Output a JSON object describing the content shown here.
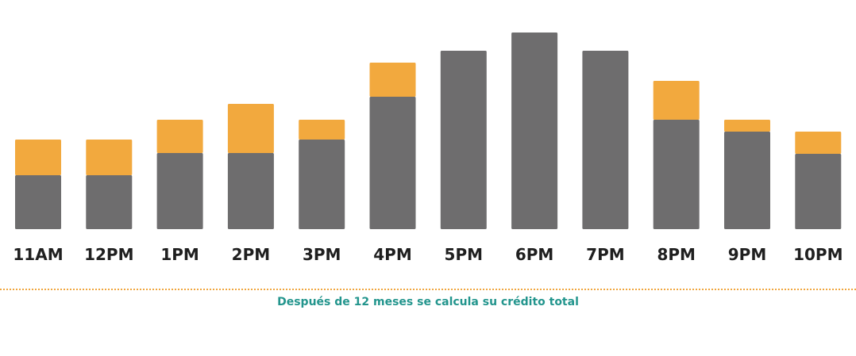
{
  "chart_data": {
    "type": "bar",
    "stacked": true,
    "categories": [
      "11AM",
      "12PM",
      "1PM",
      "2PM",
      "3PM",
      "4PM",
      "5PM",
      "6PM",
      "7PM",
      "8PM",
      "9PM",
      "10PM"
    ],
    "series": [
      {
        "values": [
          68,
          68,
          96,
          96,
          113,
          167,
          225,
          248,
          225,
          138,
          123,
          95
        ]
      },
      {
        "values": [
          45,
          45,
          42,
          62,
          25,
          43,
          0,
          0,
          0,
          49,
          15,
          28
        ]
      }
    ],
    "ylim": [
      0,
      250
    ],
    "grid": false,
    "colors": [
      "#6e6d6e",
      "#f2a93e"
    ]
  },
  "footnote": "Después de 12 meses se calcula su crédito total"
}
